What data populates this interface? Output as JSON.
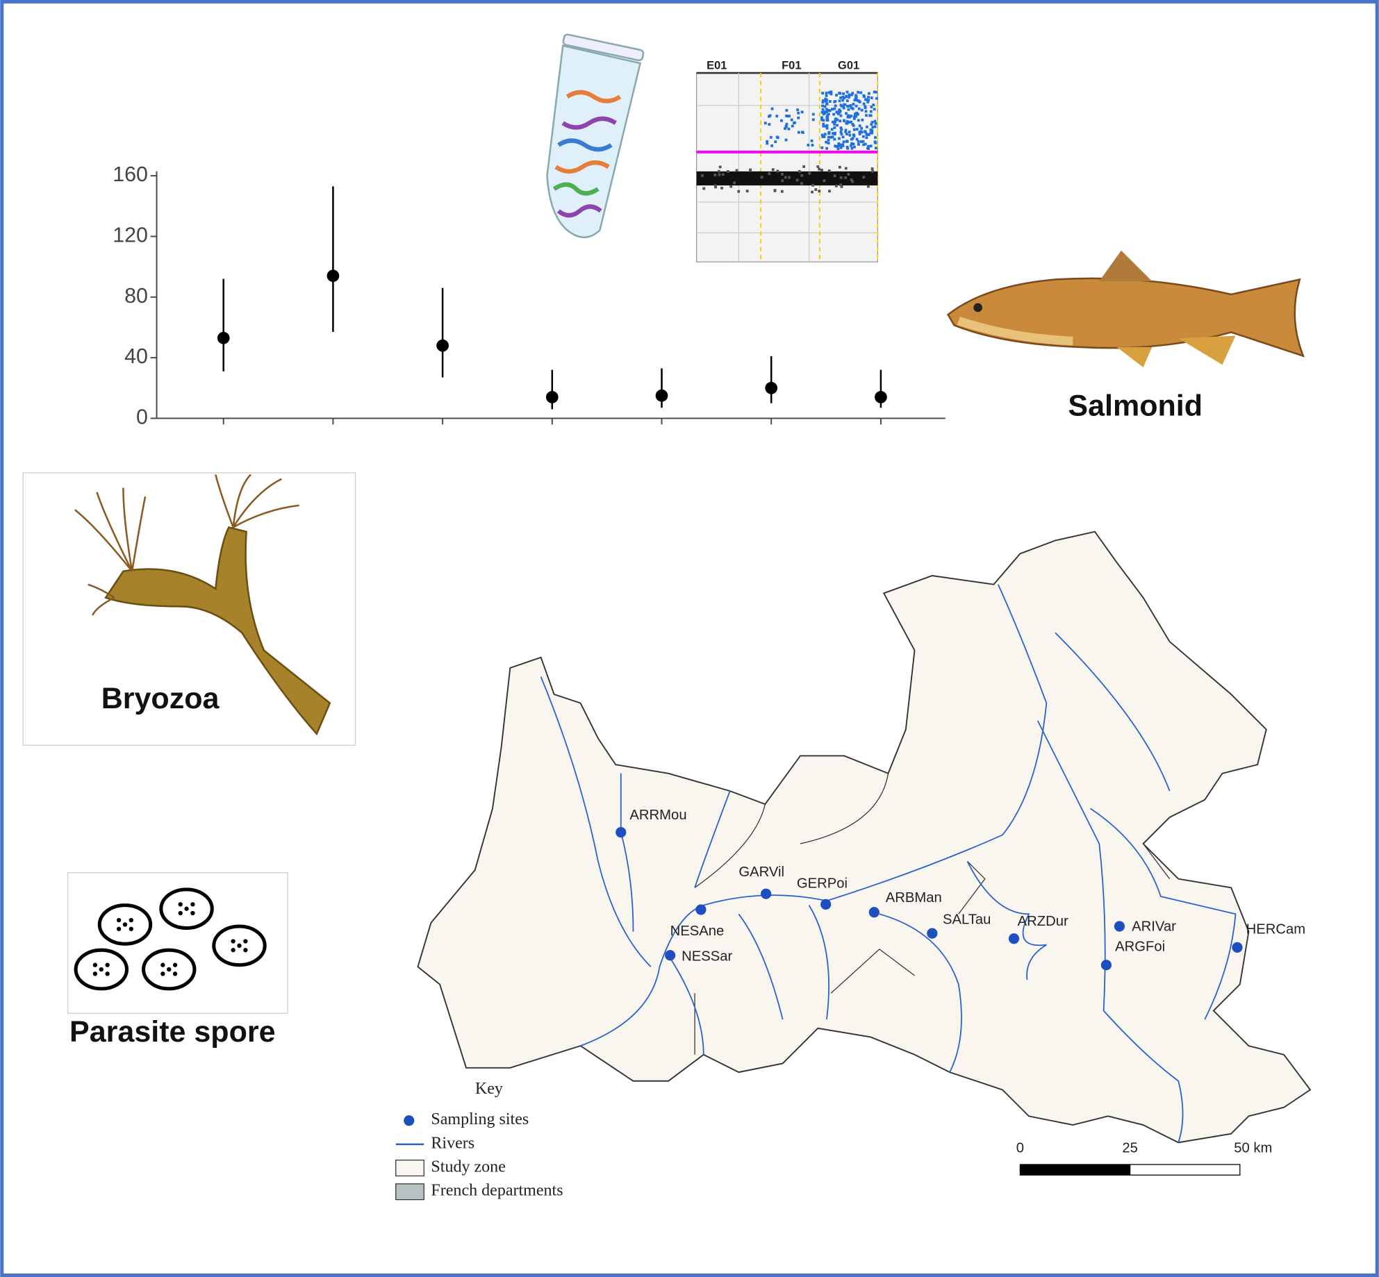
{
  "chart_data": {
    "type": "errorbar",
    "categories": [
      null,
      null,
      null,
      null,
      null,
      null,
      null
    ],
    "ylim": [
      0,
      160
    ],
    "yticks": [
      0,
      40,
      80,
      120,
      160
    ],
    "series": [
      {
        "color": "#000000",
        "values": [
          53,
          94,
          48,
          14,
          15,
          20,
          14
        ],
        "lower": [
          31,
          57,
          27,
          6,
          7,
          10,
          7
        ],
        "upper": [
          92,
          153,
          86,
          32,
          33,
          41,
          32
        ]
      }
    ]
  },
  "illustrations": {
    "wells": [
      "E01",
      "F01",
      "G01"
    ],
    "labels": [
      "Salmonid",
      "Bryozoa",
      "Parasite spore"
    ]
  },
  "map": {
    "sites": [
      "ARRMou",
      "NESAne",
      "NESSar",
      "GARVil",
      "GERPoi",
      "ARBMan",
      "SALTau",
      "ARZDur",
      "ARIVar",
      "ARGFoi",
      "HERCam"
    ],
    "key": {
      "title": "Key",
      "items": [
        "Sampling sites",
        "Rivers",
        "Study zone",
        "French departments"
      ]
    },
    "scale": [
      "0",
      "25",
      "50 km"
    ]
  }
}
